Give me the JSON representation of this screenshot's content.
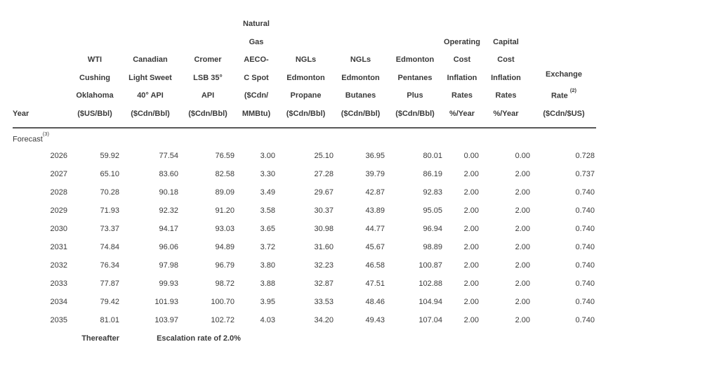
{
  "page": {
    "background_color": "#ffffff",
    "text_color": "#3a3a3a",
    "rule_color": "#595959"
  },
  "table": {
    "columns": [
      {
        "id": "year",
        "lines": [
          "Year"
        ]
      },
      {
        "id": "wti-cushing-oklahoma",
        "lines": [
          "WTI",
          "Cushing",
          "Oklahoma",
          "($US/Bbl)"
        ]
      },
      {
        "id": "canadian-light-sweet",
        "lines": [
          "Canadian",
          "Light Sweet",
          "40° API",
          "($Cdn/Bbl)"
        ]
      },
      {
        "id": "cromer-lsb",
        "lines": [
          "Cromer",
          "LSB 35°",
          "API",
          "($Cdn/Bbl)"
        ]
      },
      {
        "id": "natural-gas-aeco-c-spot",
        "lines": [
          "Natural",
          "Gas",
          "AECO-",
          "C Spot",
          "($Cdn/",
          "MMBtu)"
        ]
      },
      {
        "id": "ngls-edmonton-propane",
        "lines": [
          "NGLs",
          "Edmonton",
          "Propane",
          "($Cdn/Bbl)"
        ]
      },
      {
        "id": "ngls-edmonton-butanes",
        "lines": [
          "NGLs",
          "Edmonton",
          "Butanes",
          "($Cdn/Bbl)"
        ]
      },
      {
        "id": "edmonton-pentanes-plus",
        "lines": [
          "Edmonton",
          "Pentanes",
          "Plus",
          "($Cdn/Bbl)"
        ]
      },
      {
        "id": "operating-cost-inflation",
        "lines": [
          "Operating",
          "Cost",
          "Inflation",
          "Rates",
          "%/Year"
        ]
      },
      {
        "id": "capital-cost-inflation",
        "lines": [
          "Capital",
          "Cost",
          "Inflation",
          "Rates",
          "%/Year"
        ]
      },
      {
        "id": "exchange-rate",
        "lines": [
          "Exchange",
          {
            "text": "Rate ",
            "sup": "(2)"
          },
          "($Cdn/$US)"
        ]
      }
    ],
    "section": {
      "label": "Forecast",
      "sup": "(3)"
    },
    "rows": [
      {
        "year": "2026",
        "values": [
          "59.92",
          "77.54",
          "76.59",
          "3.00",
          "25.10",
          "36.95",
          "80.01",
          "0.00",
          "0.00",
          "0.728"
        ]
      },
      {
        "year": "2027",
        "values": [
          "65.10",
          "83.60",
          "82.58",
          "3.30",
          "27.28",
          "39.79",
          "86.19",
          "2.00",
          "2.00",
          "0.737"
        ]
      },
      {
        "year": "2028",
        "values": [
          "70.28",
          "90.18",
          "89.09",
          "3.49",
          "29.67",
          "42.87",
          "92.83",
          "2.00",
          "2.00",
          "0.740"
        ]
      },
      {
        "year": "2029",
        "values": [
          "71.93",
          "92.32",
          "91.20",
          "3.58",
          "30.37",
          "43.89",
          "95.05",
          "2.00",
          "2.00",
          "0.740"
        ]
      },
      {
        "year": "2030",
        "values": [
          "73.37",
          "94.17",
          "93.03",
          "3.65",
          "30.98",
          "44.77",
          "96.94",
          "2.00",
          "2.00",
          "0.740"
        ]
      },
      {
        "year": "2031",
        "values": [
          "74.84",
          "96.06",
          "94.89",
          "3.72",
          "31.60",
          "45.67",
          "98.89",
          "2.00",
          "2.00",
          "0.740"
        ]
      },
      {
        "year": "2032",
        "values": [
          "76.34",
          "97.98",
          "96.79",
          "3.80",
          "32.23",
          "46.58",
          "100.87",
          "2.00",
          "2.00",
          "0.740"
        ]
      },
      {
        "year": "2033",
        "values": [
          "77.87",
          "99.93",
          "98.72",
          "3.88",
          "32.87",
          "47.51",
          "102.88",
          "2.00",
          "2.00",
          "0.740"
        ]
      },
      {
        "year": "2034",
        "values": [
          "79.42",
          "101.93",
          "100.70",
          "3.95",
          "33.53",
          "48.46",
          "104.94",
          "2.00",
          "2.00",
          "0.740"
        ]
      },
      {
        "year": "2035",
        "values": [
          "81.01",
          "103.97",
          "102.72",
          "4.03",
          "34.20",
          "49.43",
          "107.04",
          "2.00",
          "2.00",
          "0.740"
        ]
      }
    ],
    "footer": {
      "thereafter_label": "Thereafter",
      "escalation_text": "Escalation rate of 2.0%"
    }
  }
}
